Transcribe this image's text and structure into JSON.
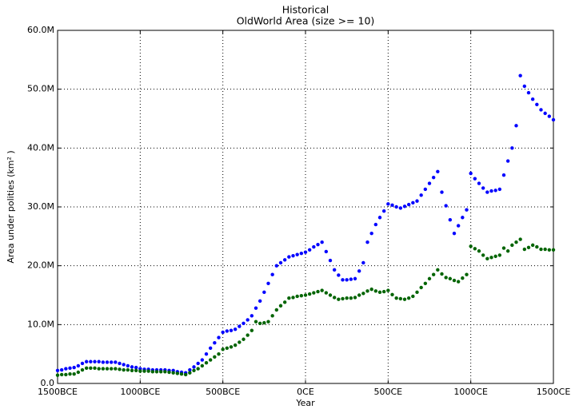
{
  "chart_data": {
    "type": "scatter",
    "title": "Historical",
    "subtitle": "OldWorld Area (size >= 10)",
    "x_label": "Year",
    "y_label": "Area under polities (km² )",
    "grid": true,
    "xlim": [
      -1500,
      1500
    ],
    "ylim": [
      0,
      60000000
    ],
    "xticks": [
      {
        "value": -1500,
        "label": "1500BCE"
      },
      {
        "value": -1000,
        "label": "1000BCE"
      },
      {
        "value": -500,
        "label": "500BCE"
      },
      {
        "value": 0,
        "label": "0CE"
      },
      {
        "value": 500,
        "label": "500CE"
      },
      {
        "value": 1000,
        "label": "1000CE"
      },
      {
        "value": 1500,
        "label": "1500CE"
      }
    ],
    "yticks": [
      {
        "value": 0,
        "label": "0.0"
      },
      {
        "value": 10000000,
        "label": "10.0M"
      },
      {
        "value": 20000000,
        "label": "20.0M"
      },
      {
        "value": 30000000,
        "label": "30.0M"
      },
      {
        "value": 40000000,
        "label": "40.0M"
      },
      {
        "value": 50000000,
        "label": "50.0M"
      },
      {
        "value": 60000000,
        "label": "60.0M"
      }
    ],
    "x": [
      -1500,
      -1475,
      -1450,
      -1425,
      -1400,
      -1375,
      -1350,
      -1325,
      -1300,
      -1275,
      -1250,
      -1225,
      -1200,
      -1175,
      -1150,
      -1125,
      -1100,
      -1075,
      -1050,
      -1025,
      -1000,
      -975,
      -950,
      -925,
      -900,
      -875,
      -850,
      -825,
      -800,
      -775,
      -750,
      -725,
      -700,
      -675,
      -650,
      -625,
      -600,
      -575,
      -550,
      -525,
      -500,
      -475,
      -450,
      -425,
      -400,
      -375,
      -350,
      -325,
      -300,
      -275,
      -250,
      -225,
      -200,
      -175,
      -150,
      -125,
      -100,
      -75,
      -50,
      -25,
      0,
      25,
      50,
      75,
      100,
      125,
      150,
      175,
      200,
      225,
      250,
      275,
      300,
      325,
      350,
      375,
      400,
      425,
      450,
      475,
      500,
      525,
      550,
      575,
      600,
      625,
      650,
      675,
      700,
      725,
      750,
      775,
      800,
      825,
      850,
      875,
      900,
      925,
      950,
      975,
      1000,
      1025,
      1050,
      1075,
      1100,
      1125,
      1150,
      1175,
      1200,
      1225,
      1250,
      1275,
      1300,
      1325,
      1350,
      1375,
      1400,
      1425,
      1450,
      1475,
      1500
    ],
    "series": [
      {
        "color": "#0000ff",
        "values": [
          2200000,
          2300000,
          2500000,
          2600000,
          2700000,
          3000000,
          3400000,
          3700000,
          3700000,
          3700000,
          3700000,
          3600000,
          3600000,
          3600000,
          3600000,
          3400000,
          3200000,
          3000000,
          2800000,
          2700000,
          2500000,
          2400000,
          2400000,
          2300000,
          2300000,
          2300000,
          2300000,
          2200000,
          2200000,
          2000000,
          1900000,
          1800000,
          2300000,
          2800000,
          3400000,
          4000000,
          5000000,
          6000000,
          6900000,
          7800000,
          8700000,
          8900000,
          9000000,
          9200000,
          9700000,
          10200000,
          10800000,
          11500000,
          12800000,
          14000000,
          15500000,
          17000000,
          18500000,
          20000000,
          20500000,
          21000000,
          21500000,
          21700000,
          21900000,
          22100000,
          22300000,
          22700000,
          23200000,
          23600000,
          24000000,
          22400000,
          20900000,
          19300000,
          18400000,
          17600000,
          17600000,
          17700000,
          17800000,
          19100000,
          20500000,
          24000000,
          25500000,
          27000000,
          28200000,
          29300000,
          30500000,
          30300000,
          30000000,
          29800000,
          30100000,
          30400000,
          30700000,
          31000000,
          32000000,
          33000000,
          34000000,
          35000000,
          36000000,
          32500000,
          30200000,
          27800000,
          25500000,
          26800000,
          28200000,
          29500000,
          35700000,
          34800000,
          34000000,
          33200000,
          32500000,
          32700000,
          32800000,
          33000000,
          35400000,
          37800000,
          40000000,
          43800000,
          52300000,
          50500000,
          49400000,
          48300000,
          47400000,
          46500000,
          45900000,
          45400000,
          44800000
        ]
      },
      {
        "color": "#006400",
        "values": [
          1400000,
          1500000,
          1500000,
          1600000,
          1600000,
          1900000,
          2300000,
          2600000,
          2600000,
          2600000,
          2500000,
          2500000,
          2500000,
          2500000,
          2500000,
          2400000,
          2300000,
          2300000,
          2200000,
          2200000,
          2100000,
          2100000,
          2100000,
          2000000,
          2000000,
          2000000,
          2000000,
          1900000,
          1800000,
          1700000,
          1600000,
          1500000,
          1800000,
          2200000,
          2500000,
          3000000,
          3500000,
          4000000,
          4500000,
          5000000,
          5800000,
          6000000,
          6200000,
          6500000,
          7000000,
          7500000,
          8200000,
          9000000,
          10500000,
          10200000,
          10300000,
          10500000,
          11500000,
          12500000,
          13200000,
          13800000,
          14500000,
          14600000,
          14800000,
          14900000,
          15000000,
          15200000,
          15400000,
          15600000,
          15800000,
          15400000,
          15000000,
          14600000,
          14300000,
          14400000,
          14500000,
          14500000,
          14600000,
          15000000,
          15300000,
          15700000,
          16000000,
          15700000,
          15500000,
          15600000,
          15800000,
          15100000,
          14500000,
          14400000,
          14300000,
          14500000,
          14800000,
          15500000,
          16300000,
          17000000,
          17800000,
          18500000,
          19300000,
          18600000,
          18000000,
          17800000,
          17500000,
          17300000,
          17900000,
          18500000,
          23300000,
          22900000,
          22500000,
          21800000,
          21200000,
          21400000,
          21600000,
          21800000,
          23000000,
          22500000,
          23500000,
          24000000,
          24500000,
          22800000,
          23100000,
          23500000,
          23200000,
          22800000,
          22800000,
          22700000,
          22700000
        ]
      }
    ]
  }
}
